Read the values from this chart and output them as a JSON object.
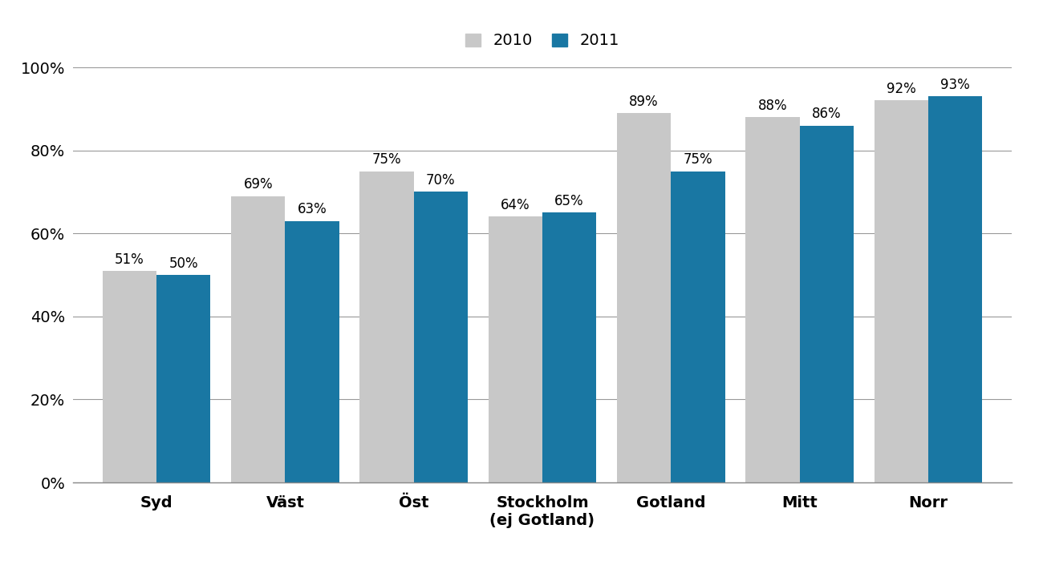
{
  "categories": [
    "Syd",
    "Väst",
    "Öst",
    "Stockholm\n(ej Gotland)",
    "Gotland",
    "Mitt",
    "Norr"
  ],
  "values_2010": [
    51,
    69,
    75,
    64,
    89,
    88,
    92
  ],
  "values_2011": [
    50,
    63,
    70,
    65,
    75,
    86,
    93
  ],
  "color_2010": "#c8c8c8",
  "color_2011": "#1977a3",
  "legend_labels": [
    "2010",
    "2011"
  ],
  "ylim": [
    0,
    100
  ],
  "yticks": [
    0,
    20,
    40,
    60,
    80,
    100
  ],
  "ytick_labels": [
    "0%",
    "20%",
    "40%",
    "60%",
    "80%",
    "100%"
  ],
  "bar_width": 0.42,
  "tick_fontsize": 14,
  "legend_fontsize": 14,
  "value_label_fontsize": 12,
  "background_color": "#ffffff"
}
